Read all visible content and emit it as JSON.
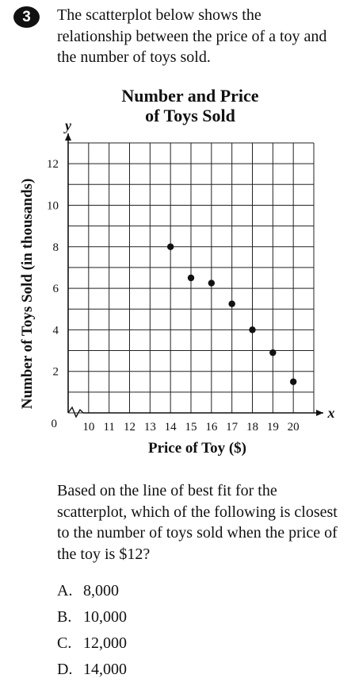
{
  "question": {
    "number": "3",
    "prompt": "The scatterplot below shows the relationship between the price of a toy and the number of toys sold.",
    "text": "Based on the line of best fit for the scatterplot, which of the following is closest to the number of toys sold when the price of the toy is $12?",
    "options": [
      {
        "letter": "A.",
        "text": "8,000"
      },
      {
        "letter": "B.",
        "text": "10,000"
      },
      {
        "letter": "C.",
        "text": "12,000"
      },
      {
        "letter": "D.",
        "text": "14,000"
      }
    ]
  },
  "chart_data": {
    "type": "scatter",
    "title": "Number and Price\nof Toys Sold",
    "xlabel": "Price of Toy ($)",
    "ylabel": "Number of Toys Sold (in thousands)",
    "x_axis_letter": "x",
    "y_axis_letter": "y",
    "origin_label": "0",
    "x_ticks": [
      10,
      11,
      12,
      13,
      14,
      15,
      16,
      17,
      18,
      19,
      20
    ],
    "y_ticks": [
      2,
      4,
      6,
      8,
      10,
      12
    ],
    "xlim": [
      9,
      21
    ],
    "ylim": [
      0,
      13
    ],
    "x_axis_break": true,
    "grid": true,
    "points": [
      {
        "x": 14,
        "y": 8
      },
      {
        "x": 15,
        "y": 6.5
      },
      {
        "x": 16,
        "y": 6.25
      },
      {
        "x": 17,
        "y": 5.25
      },
      {
        "x": 18,
        "y": 4
      },
      {
        "x": 19,
        "y": 2.9
      },
      {
        "x": 20,
        "y": 1.5
      }
    ]
  }
}
